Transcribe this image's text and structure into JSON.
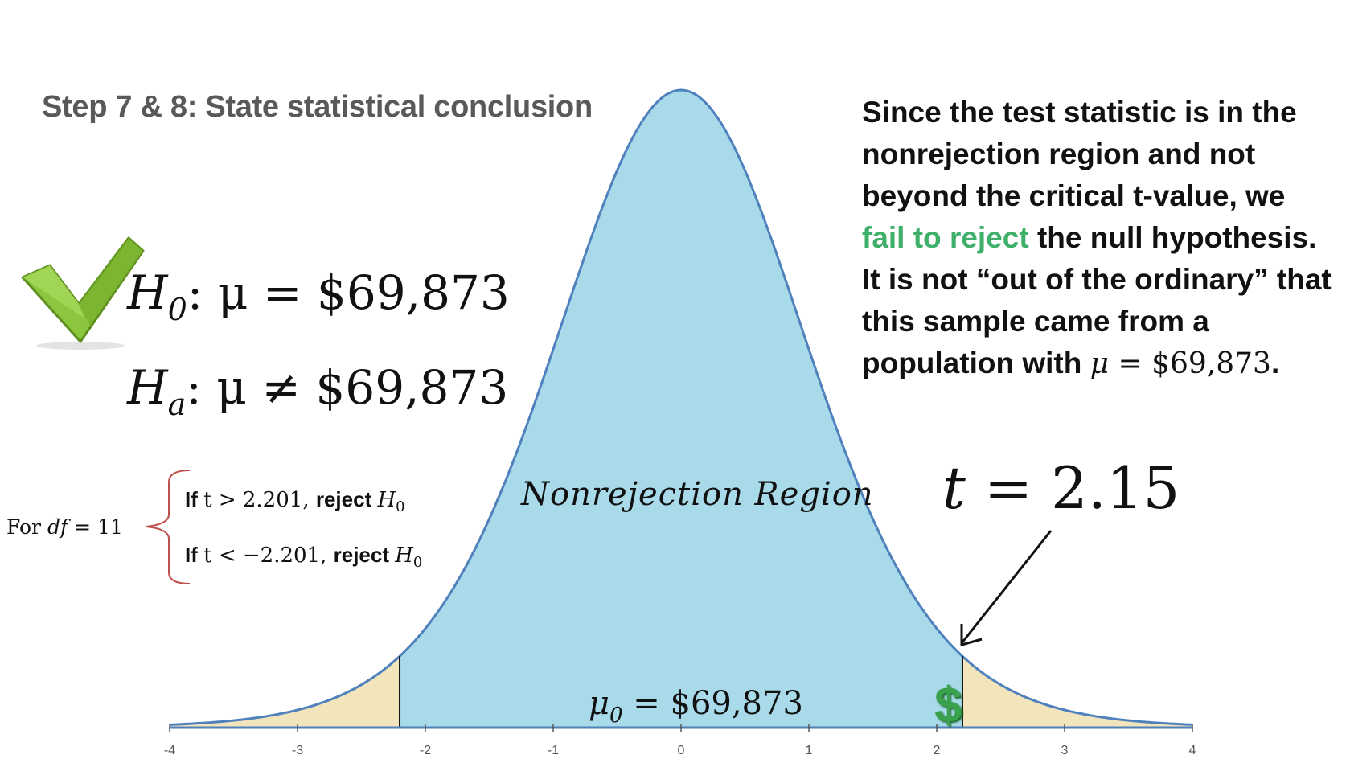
{
  "title": "Step 7 & 8: State statistical conclusion",
  "hypotheses": {
    "null": {
      "symbol": "H",
      "sub": "0",
      "rest": ": μ = $69,873"
    },
    "alt": {
      "symbol": "H",
      "sub": "a",
      "rest": ": μ ≠ $69,873"
    }
  },
  "decision_rules": {
    "df_label": "For ",
    "df_var": "df",
    "df_value": " = 11",
    "rules": [
      {
        "if": "If ",
        "cond": "t > 2.201",
        "comma": ", ",
        "action": "reject ",
        "h": "H",
        "sub": "0"
      },
      {
        "if": "If ",
        "cond": "t < −2.201",
        "comma": ", ",
        "action": "reject ",
        "h": "H",
        "sub": "0"
      }
    ]
  },
  "conclusion": {
    "before": "Since the test statistic is in the nonrejection region and not beyond the critical t-value, we ",
    "highlight": "fail to reject",
    "after": " the null hypothesis. It is not “out of the ordinary” that this sample came from a population with ",
    "math_var": "μ",
    "math_rest": " = $69,873",
    "end": "."
  },
  "test_statistic": {
    "var": "t",
    "rest": " = 2.15"
  },
  "region_label": "Nonrejection Region",
  "mean_label": {
    "var": "μ",
    "sub": "0",
    "rest": " = $69,873"
  },
  "dollar_icon_text": "$",
  "colors": {
    "nonrejection_fill": "#a8daea",
    "rejection_fill": "#f2e5bb",
    "curve_stroke": "#4f81bd",
    "highlight_green": "#3fb06a",
    "checkmark_green": "#8cc63f",
    "brace_color": "#c0504d"
  },
  "chart_data": {
    "type": "area",
    "distribution": "t",
    "df": 11,
    "xlim": [
      -4,
      4
    ],
    "x_ticks": [
      "-4",
      "-3",
      "-2",
      "-1",
      "0",
      "1",
      "2",
      "3",
      "4"
    ],
    "critical_values": [
      -2.201,
      2.201
    ],
    "test_statistic": 2.15
  }
}
